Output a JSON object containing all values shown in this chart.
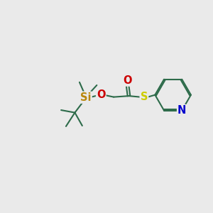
{
  "bg_color": "#eaeaea",
  "bond_color": "#2d6b4a",
  "Si_color": "#b8860b",
  "O_color": "#cc0000",
  "S_color": "#cccc00",
  "N_color": "#0000cc",
  "line_width": 1.5,
  "font_size": 10.5,
  "figsize": [
    3.0,
    3.0
  ],
  "dpi": 100,
  "xlim": [
    0,
    10
  ],
  "ylim": [
    0,
    10
  ]
}
